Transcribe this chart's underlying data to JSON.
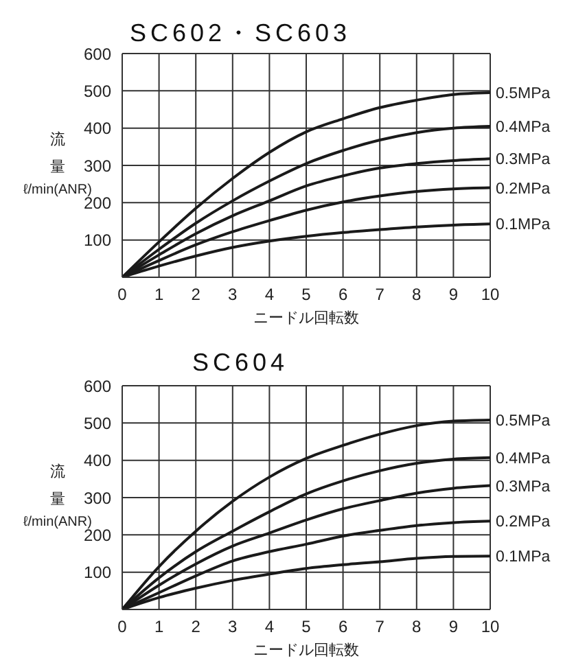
{
  "chart_data": [
    {
      "type": "line",
      "title": "SC602・SC603",
      "xlabel": "ニードル回転数",
      "ylabel": "流量 ℓ/min(ANR)",
      "x": [
        0,
        1,
        2,
        3,
        4,
        5,
        6,
        7,
        8,
        9,
        10
      ],
      "xlim": [
        0,
        10
      ],
      "xticks": [
        0,
        1,
        2,
        3,
        4,
        5,
        6,
        7,
        8,
        9,
        10
      ],
      "ylim": [
        0,
        600
      ],
      "yticks": [
        {
          "value": 0,
          "label": null
        },
        100,
        200,
        300,
        400,
        500,
        600
      ],
      "grid": true,
      "legend": false,
      "marker": "none",
      "line_style": "solid",
      "series": [
        {
          "name": "0.5MPa",
          "color": "#1a1a1a",
          "values": [
            0,
            95,
            185,
            265,
            335,
            390,
            425,
            455,
            475,
            490,
            495
          ]
        },
        {
          "name": "0.4MPa",
          "color": "#1a1a1a",
          "values": [
            0,
            75,
            145,
            205,
            258,
            305,
            340,
            368,
            388,
            400,
            405
          ]
        },
        {
          "name": "0.3MPa",
          "color": "#1a1a1a",
          "values": [
            0,
            60,
            117,
            165,
            205,
            245,
            272,
            293,
            305,
            313,
            318
          ]
        },
        {
          "name": "0.2MPa",
          "color": "#1a1a1a",
          "values": [
            0,
            45,
            87,
            122,
            152,
            180,
            202,
            218,
            230,
            237,
            240
          ]
        },
        {
          "name": "0.1MPa",
          "color": "#1a1a1a",
          "values": [
            0,
            30,
            57,
            80,
            97,
            110,
            120,
            128,
            135,
            140,
            143
          ]
        }
      ]
    },
    {
      "type": "line",
      "title": "SC604",
      "xlabel": "ニードル回転数",
      "ylabel": "流量 ℓ/min(ANR)",
      "x": [
        0,
        1,
        2,
        3,
        4,
        5,
        6,
        7,
        8,
        9,
        10
      ],
      "xlim": [
        0,
        10
      ],
      "xticks": [
        0,
        1,
        2,
        3,
        4,
        5,
        6,
        7,
        8,
        9,
        10
      ],
      "ylim": [
        0,
        600
      ],
      "yticks": [
        {
          "value": 0,
          "label": null
        },
        100,
        200,
        300,
        400,
        500,
        600
      ],
      "grid": true,
      "legend": false,
      "marker": "none",
      "line_style": "solid",
      "series": [
        {
          "name": "0.5MPa",
          "color": "#1a1a1a",
          "values": [
            0,
            115,
            210,
            290,
            355,
            405,
            440,
            470,
            493,
            505,
            508
          ]
        },
        {
          "name": "0.4MPa",
          "color": "#1a1a1a",
          "values": [
            0,
            85,
            155,
            210,
            262,
            310,
            345,
            372,
            392,
            403,
            407
          ]
        },
        {
          "name": "0.3MPa",
          "color": "#1a1a1a",
          "values": [
            0,
            65,
            122,
            170,
            205,
            240,
            270,
            292,
            312,
            325,
            332
          ]
        },
        {
          "name": "0.2MPa",
          "color": "#1a1a1a",
          "values": [
            0,
            45,
            90,
            130,
            155,
            175,
            197,
            212,
            225,
            233,
            237
          ]
        },
        {
          "name": "0.1MPa",
          "color": "#1a1a1a",
          "values": [
            0,
            32,
            57,
            78,
            95,
            110,
            120,
            128,
            137,
            142,
            143
          ]
        }
      ]
    }
  ]
}
